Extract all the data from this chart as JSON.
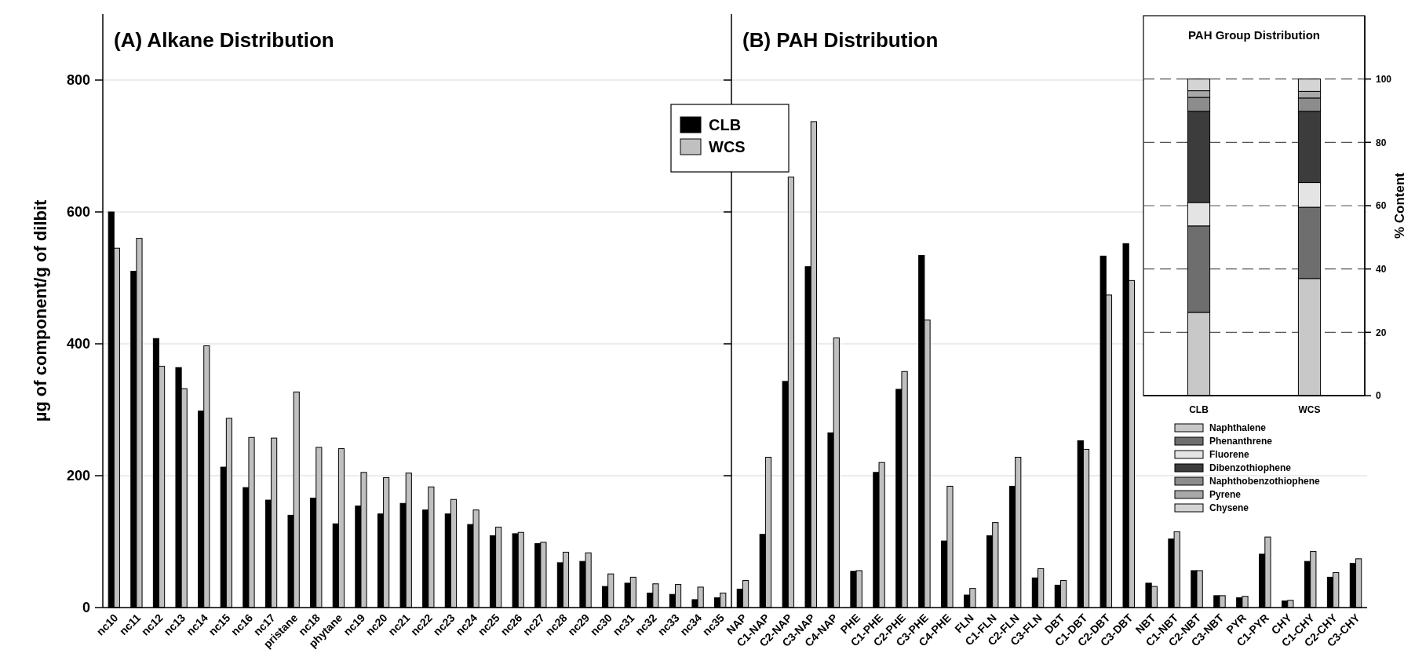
{
  "chart_data": [
    {
      "type": "bar",
      "title": "(A) Alkane Distribution",
      "ylabel": "µg of component/g of dilbit",
      "categories": [
        "nc10",
        "nc11",
        "nc12",
        "nc13",
        "nc14",
        "nc15",
        "nc16",
        "nc17",
        "pristane",
        "nc18",
        "phytane",
        "nc19",
        "nc20",
        "nc21",
        "nc22",
        "nc23",
        "nc24",
        "nc25",
        "nc26",
        "nc27",
        "nc28",
        "nc29",
        "nc30",
        "nc31",
        "nc32",
        "nc33",
        "nc34",
        "nc35"
      ],
      "series": [
        {
          "name": "CLB",
          "color": "#000000",
          "values": [
            600,
            510,
            408,
            364,
            298,
            213,
            182,
            163,
            140,
            166,
            127,
            154,
            142,
            158,
            148,
            142,
            126,
            109,
            112,
            97,
            68,
            70,
            32,
            37,
            22,
            20,
            12,
            15
          ]
        },
        {
          "name": "WCS",
          "color": "#c0c0c0",
          "values": [
            545,
            560,
            366,
            332,
            397,
            287,
            258,
            257,
            327,
            243,
            241,
            205,
            197,
            204,
            183,
            164,
            148,
            122,
            114,
            99,
            84,
            83,
            51,
            46,
            36,
            35,
            31,
            22
          ]
        }
      ],
      "ylim": [
        0,
        900
      ],
      "yticks": [
        0,
        200,
        400,
        600,
        800
      ],
      "grid": "y",
      "legend": "top right"
    },
    {
      "type": "bar",
      "title": "(B) PAH Distribution",
      "categories": [
        "NAP",
        "C1-NAP",
        "C2-NAP",
        "C3-NAP",
        "C4-NAP",
        "PHE",
        "C1-PHE",
        "C2-PHE",
        "C3-PHE",
        "C4-PHE",
        "FLN",
        "C1-FLN",
        "C2-FLN",
        "C3-FLN",
        "DBT",
        "C1-DBT",
        "C2-DBT",
        "C3-DBT",
        "NBT",
        "C1-NBT",
        "C2-NBT",
        "C3-NBT",
        "PYR",
        "C1-PYR",
        "CHY",
        "C1-CHY",
        "C2-CHY",
        "C3-CHY"
      ],
      "series": [
        {
          "color": "#000000",
          "values": [
            28,
            111,
            343,
            517,
            265,
            55,
            205,
            331,
            534,
            101,
            19,
            109,
            184,
            45,
            34,
            253,
            533,
            552,
            37,
            104,
            56,
            18,
            15,
            81,
            10,
            70,
            46,
            67
          ]
        },
        {
          "color": "#c0c0c0",
          "values": [
            41,
            228,
            653,
            737,
            409,
            56,
            220,
            358,
            436,
            184,
            29,
            129,
            228,
            59,
            41,
            240,
            474,
            496,
            32,
            115,
            56,
            18,
            17,
            107,
            11,
            85,
            53,
            74
          ]
        }
      ],
      "ylim": [
        0,
        900
      ],
      "yticks": [
        {
          "value": 0,
          "label": null
        },
        {
          "value": 200,
          "label": null
        },
        {
          "value": 400,
          "label": null
        },
        {
          "value": 600,
          "label": null
        },
        {
          "value": 800,
          "label": null
        }
      ],
      "grid": "y",
      "tick_labels": "x"
    },
    {
      "type": "bar",
      "stacked": true,
      "title": "PAH Group Distribution",
      "ylabel": "% Content",
      "categories": [
        "CLB",
        "WCS"
      ],
      "series": [
        {
          "name": "Naphthalene",
          "color": "#c8c8c8",
          "values": [
            26.3,
            37
          ]
        },
        {
          "name": "Phenanthrene",
          "color": "#6e6e6e",
          "values": [
            27.3,
            22.5
          ]
        },
        {
          "name": "Fluorene",
          "color": "#e4e4e4",
          "values": [
            7.4,
            7.8
          ]
        },
        {
          "name": "Dibenzothiophene",
          "color": "#3c3c3c",
          "values": [
            28.8,
            22.5
          ]
        },
        {
          "name": "Naphthobenzothiophene",
          "color": "#8c8c8c",
          "values": [
            4.4,
            4.2
          ]
        },
        {
          "name": "Pyrene",
          "color": "#a8a8a8",
          "values": [
            2.1,
            2.1
          ]
        },
        {
          "name": "Chysene",
          "color": "#d4d4d4",
          "values": [
            3.7,
            3.9
          ]
        }
      ],
      "ylim": [
        0,
        120
      ],
      "yticks": [
        0,
        20,
        40,
        60,
        80,
        100
      ],
      "grid": "y",
      "legend": "bottom"
    }
  ]
}
